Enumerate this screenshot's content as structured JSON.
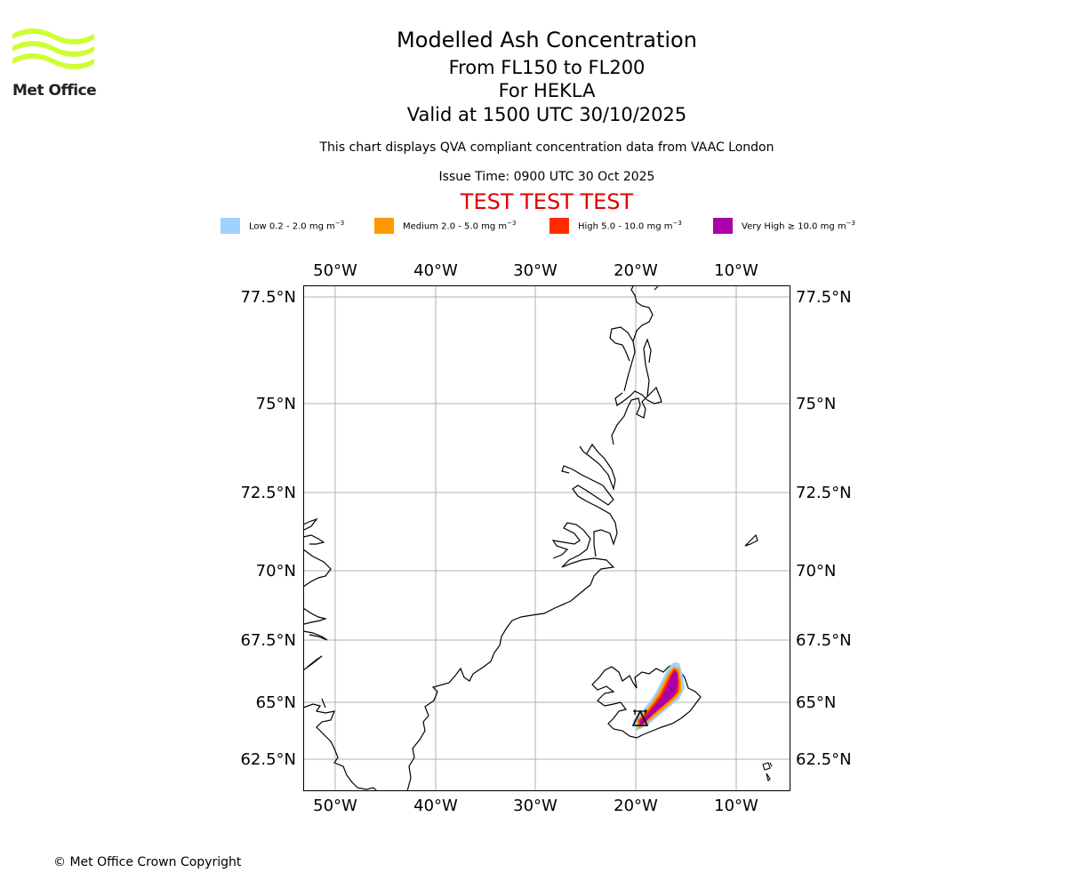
{
  "logo": {
    "text": "Met Office",
    "color": "#ccff33"
  },
  "header": {
    "title": "Modelled Ash Concentration",
    "levels": "From FL150 to FL200",
    "volcano": "For HEKLA",
    "valid": "Valid at 1500 UTC 30/10/2025",
    "description": "This chart displays QVA compliant concentration data from VAAC London",
    "issue_time": "Issue Time: 0900 UTC 30 Oct 2025",
    "test_banner": "TEST TEST TEST",
    "test_color": "#e00000"
  },
  "legend": {
    "items": [
      {
        "label": "Low 0.2 - 2.0 mg m",
        "sup": "−3",
        "color": "#a0d2ff"
      },
      {
        "label": "Medium 2.0 - 5.0 mg m",
        "sup": "−3",
        "color": "#ff9900"
      },
      {
        "label": "High 5.0 - 10.0 mg m",
        "sup": "−3",
        "color": "#ff2a00"
      },
      {
        "label": "Very High  ≥  10.0 mg m",
        "sup": "−3",
        "color": "#aa00aa"
      }
    ]
  },
  "map": {
    "lon_labels": [
      "50°W",
      "40°W",
      "30°W",
      "20°W",
      "10°W"
    ],
    "lat_labels": [
      "77.5°N",
      "75°N",
      "72.5°N",
      "70°N",
      "67.5°N",
      "65°N",
      "62.5°N"
    ],
    "grid": true,
    "volcano_marker": "hekla-triangle"
  },
  "footer": {
    "copyright": "© Met Office Crown Copyright"
  }
}
